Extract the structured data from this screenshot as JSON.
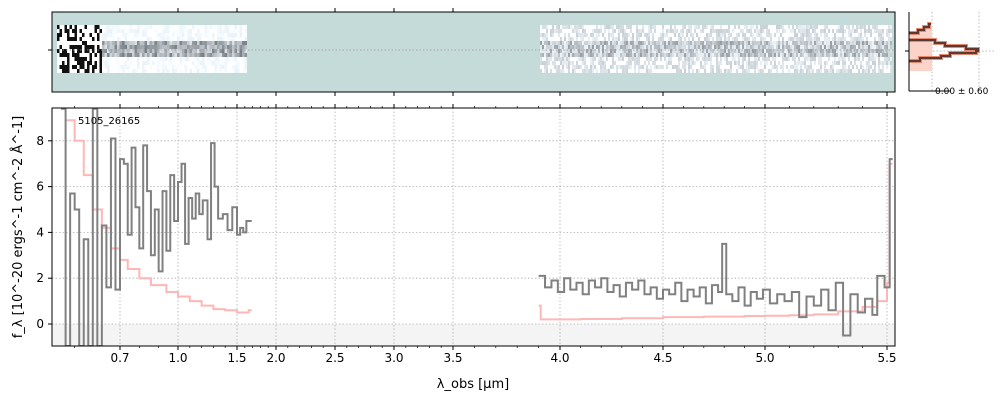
{
  "chart_data": {
    "type": "line",
    "object_label": "5105_26165",
    "xlabel": "λ_obs [μm]",
    "ylabel": "f_λ [10^-20 ergs^-1 cm^-2 Å^-1]",
    "xscale": "nonlinear (tick-spaced)",
    "xlim": [
      0.55,
      5.53
    ],
    "ylim": [
      -0.96,
      9.43
    ],
    "x_ticks": [
      "0.7",
      "1.0",
      "1.5",
      "2.0",
      "2.5",
      "3.0",
      "3.5",
      "4.0",
      "4.5",
      "5.0",
      "5.5"
    ],
    "y_ticks": [
      "0",
      "2",
      "4",
      "6",
      "8"
    ],
    "grid": true,
    "series": [
      {
        "name": "flux",
        "color": "#808080",
        "style": "steps",
        "segments": [
          [
            [
              0.57,
              9.4
            ],
            [
              0.58,
              -1
            ],
            [
              0.59,
              5.7
            ],
            [
              0.6,
              5.0
            ],
            [
              0.61,
              -1
            ],
            [
              0.62,
              3.7
            ],
            [
              0.63,
              -1
            ],
            [
              0.64,
              9.4
            ],
            [
              0.65,
              -1
            ],
            [
              0.66,
              4.3
            ],
            [
              0.67,
              1.6
            ],
            [
              0.68,
              8.1
            ],
            [
              0.69,
              1.5
            ],
            [
              0.7,
              7.2
            ],
            [
              0.72,
              7.0
            ],
            [
              0.74,
              3.9
            ],
            [
              0.76,
              7.7
            ],
            [
              0.78,
              5.1
            ],
            [
              0.8,
              3.3
            ],
            [
              0.82,
              7.8
            ],
            [
              0.84,
              5.8
            ],
            [
              0.86,
              3.0
            ],
            [
              0.88,
              5.0
            ],
            [
              0.9,
              2.3
            ],
            [
              0.92,
              5.8
            ],
            [
              0.94,
              3.2
            ],
            [
              0.96,
              6.5
            ],
            [
              0.98,
              4.5
            ],
            [
              1.0,
              6.2
            ],
            [
              1.03,
              7.0
            ],
            [
              1.06,
              3.5
            ],
            [
              1.09,
              5.5
            ],
            [
              1.12,
              4.6
            ],
            [
              1.15,
              5.7
            ],
            [
              1.18,
              4.8
            ],
            [
              1.21,
              5.4
            ],
            [
              1.25,
              3.7
            ],
            [
              1.28,
              7.9
            ],
            [
              1.31,
              6.0
            ],
            [
              1.34,
              4.6
            ],
            [
              1.38,
              4.8
            ],
            [
              1.42,
              4.1
            ],
            [
              1.46,
              5.1
            ],
            [
              1.5,
              3.9
            ],
            [
              1.54,
              4.2
            ],
            [
              1.58,
              4.0
            ],
            [
              1.62,
              4.5
            ],
            [
              1.65,
              4.5
            ]
          ],
          [
            [
              3.9,
              2.1
            ],
            [
              3.93,
              1.6
            ],
            [
              3.96,
              1.9
            ],
            [
              3.99,
              1.4
            ],
            [
              4.02,
              2.0
            ],
            [
              4.05,
              1.5
            ],
            [
              4.08,
              1.8
            ],
            [
              4.11,
              1.3
            ],
            [
              4.14,
              1.9
            ],
            [
              4.17,
              1.6
            ],
            [
              4.2,
              2.0
            ],
            [
              4.23,
              1.4
            ],
            [
              4.26,
              1.7
            ],
            [
              4.29,
              1.2
            ],
            [
              4.32,
              1.8
            ],
            [
              4.35,
              1.5
            ],
            [
              4.38,
              1.9
            ],
            [
              4.41,
              1.3
            ],
            [
              4.44,
              1.6
            ],
            [
              4.47,
              1.1
            ],
            [
              4.5,
              1.5
            ],
            [
              4.53,
              1.3
            ],
            [
              4.56,
              1.8
            ],
            [
              4.59,
              1.0
            ],
            [
              4.62,
              1.5
            ],
            [
              4.65,
              1.2
            ],
            [
              4.68,
              1.6
            ],
            [
              4.71,
              0.9
            ],
            [
              4.74,
              1.7
            ],
            [
              4.77,
              1.4
            ],
            [
              4.79,
              3.5
            ],
            [
              4.81,
              1.3
            ],
            [
              4.84,
              1.0
            ],
            [
              4.87,
              1.6
            ],
            [
              4.9,
              0.8
            ],
            [
              4.93,
              1.4
            ],
            [
              4.96,
              1.1
            ],
            [
              4.99,
              1.5
            ],
            [
              5.02,
              0.9
            ],
            [
              5.05,
              1.3
            ],
            [
              5.08,
              1.0
            ],
            [
              5.11,
              1.4
            ],
            [
              5.14,
              0.3
            ],
            [
              5.17,
              1.2
            ],
            [
              5.2,
              0.8
            ],
            [
              5.23,
              1.5
            ],
            [
              5.26,
              0.6
            ],
            [
              5.29,
              1.8
            ],
            [
              5.32,
              -0.5
            ],
            [
              5.35,
              1.3
            ],
            [
              5.38,
              0.5
            ],
            [
              5.41,
              1.1
            ],
            [
              5.44,
              0.4
            ],
            [
              5.46,
              2.1
            ],
            [
              5.49,
              1.6
            ],
            [
              5.51,
              7.2
            ]
          ]
        ]
      },
      {
        "name": "error",
        "color": "#ffb6b6",
        "style": "steps",
        "segments": [
          [
            [
              0.58,
              8.9
            ],
            [
              0.6,
              8.0
            ],
            [
              0.62,
              6.5
            ],
            [
              0.64,
              5.0
            ],
            [
              0.66,
              4.2
            ],
            [
              0.68,
              3.3
            ],
            [
              0.7,
              2.8
            ],
            [
              0.74,
              2.4
            ],
            [
              0.8,
              2.0
            ],
            [
              0.86,
              1.7
            ],
            [
              0.94,
              1.4
            ],
            [
              1.0,
              1.2
            ],
            [
              1.1,
              1.0
            ],
            [
              1.2,
              0.8
            ],
            [
              1.3,
              0.65
            ],
            [
              1.4,
              0.6
            ],
            [
              1.5,
              0.5
            ],
            [
              1.6,
              0.5
            ],
            [
              1.65,
              0.6
            ]
          ],
          [
            [
              3.9,
              0.8
            ],
            [
              3.91,
              0.2
            ],
            [
              4.1,
              0.22
            ],
            [
              4.3,
              0.25
            ],
            [
              4.5,
              0.3
            ],
            [
              4.7,
              0.32
            ],
            [
              4.9,
              0.35
            ],
            [
              5.0,
              0.36
            ],
            [
              5.1,
              0.38
            ],
            [
              5.2,
              0.42
            ],
            [
              5.3,
              0.55
            ],
            [
              5.4,
              0.75
            ],
            [
              5.46,
              1.0
            ],
            [
              5.5,
              1.8
            ],
            [
              5.51,
              7.0
            ]
          ]
        ]
      }
    ],
    "spectrum_2d": {
      "colormap": "bone_r",
      "background": "#c5dbd9"
    },
    "histogram_inset": {
      "label": "0.00 ± 0.60",
      "line_color": "#5a3a32",
      "fill_color": "#fbd3c8"
    }
  }
}
